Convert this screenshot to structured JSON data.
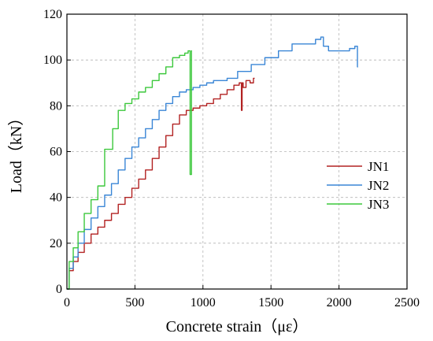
{
  "chart_data": {
    "type": "line",
    "title": "",
    "xlabel": "Concrete strain（με）",
    "ylabel": "Load（kN）",
    "xlim": [
      0,
      2500
    ],
    "ylim": [
      0,
      120
    ],
    "xticks": [
      0,
      500,
      1000,
      1500,
      2000,
      2500
    ],
    "yticks": [
      0,
      20,
      40,
      60,
      80,
      100,
      120
    ],
    "grid": true,
    "legend_position": "center-right",
    "series": [
      {
        "name": "JN1",
        "color": "#b22222",
        "x": [
          0,
          30,
          60,
          100,
          150,
          200,
          250,
          300,
          350,
          400,
          450,
          500,
          550,
          600,
          650,
          700,
          750,
          800,
          850,
          900,
          950,
          1000,
          1050,
          1100,
          1150,
          1200,
          1250,
          1280,
          1285,
          1290,
          1300,
          1330,
          1360,
          1380
        ],
        "y": [
          0,
          8,
          12,
          16,
          20,
          24,
          27,
          30,
          33,
          37,
          40,
          44,
          48,
          52,
          57,
          62,
          67,
          72,
          76,
          78,
          79,
          80,
          81,
          83,
          85,
          87,
          89,
          90,
          78,
          90,
          88,
          91,
          90,
          92
        ]
      },
      {
        "name": "JN2",
        "color": "#3a86d6",
        "x": [
          0,
          30,
          60,
          100,
          150,
          200,
          250,
          300,
          350,
          400,
          450,
          500,
          550,
          600,
          650,
          700,
          750,
          800,
          850,
          900,
          950,
          1000,
          1050,
          1100,
          1150,
          1200,
          1300,
          1400,
          1500,
          1600,
          1700,
          1800,
          1850,
          1880,
          1890,
          1950,
          2000,
          2050,
          2100,
          2130,
          2140
        ],
        "y": [
          0,
          9,
          14,
          20,
          26,
          31,
          36,
          41,
          46,
          52,
          57,
          62,
          66,
          70,
          74,
          78,
          81,
          84,
          86,
          87,
          88,
          89,
          90,
          91,
          91,
          92,
          95,
          98,
          101,
          104,
          107,
          107,
          109,
          110,
          106,
          104,
          104,
          104,
          105,
          106,
          97
        ]
      },
      {
        "name": "JN3",
        "color": "#3cc83c",
        "x": [
          0,
          30,
          60,
          100,
          150,
          200,
          250,
          300,
          320,
          350,
          400,
          450,
          500,
          550,
          600,
          650,
          700,
          750,
          800,
          850,
          880,
          900,
          910,
          920
        ],
        "y": [
          0,
          12,
          18,
          25,
          33,
          39,
          45,
          61,
          61,
          70,
          78,
          81,
          83,
          86,
          88,
          91,
          94,
          97,
          101,
          102,
          103,
          104,
          50,
          104
        ]
      }
    ]
  }
}
